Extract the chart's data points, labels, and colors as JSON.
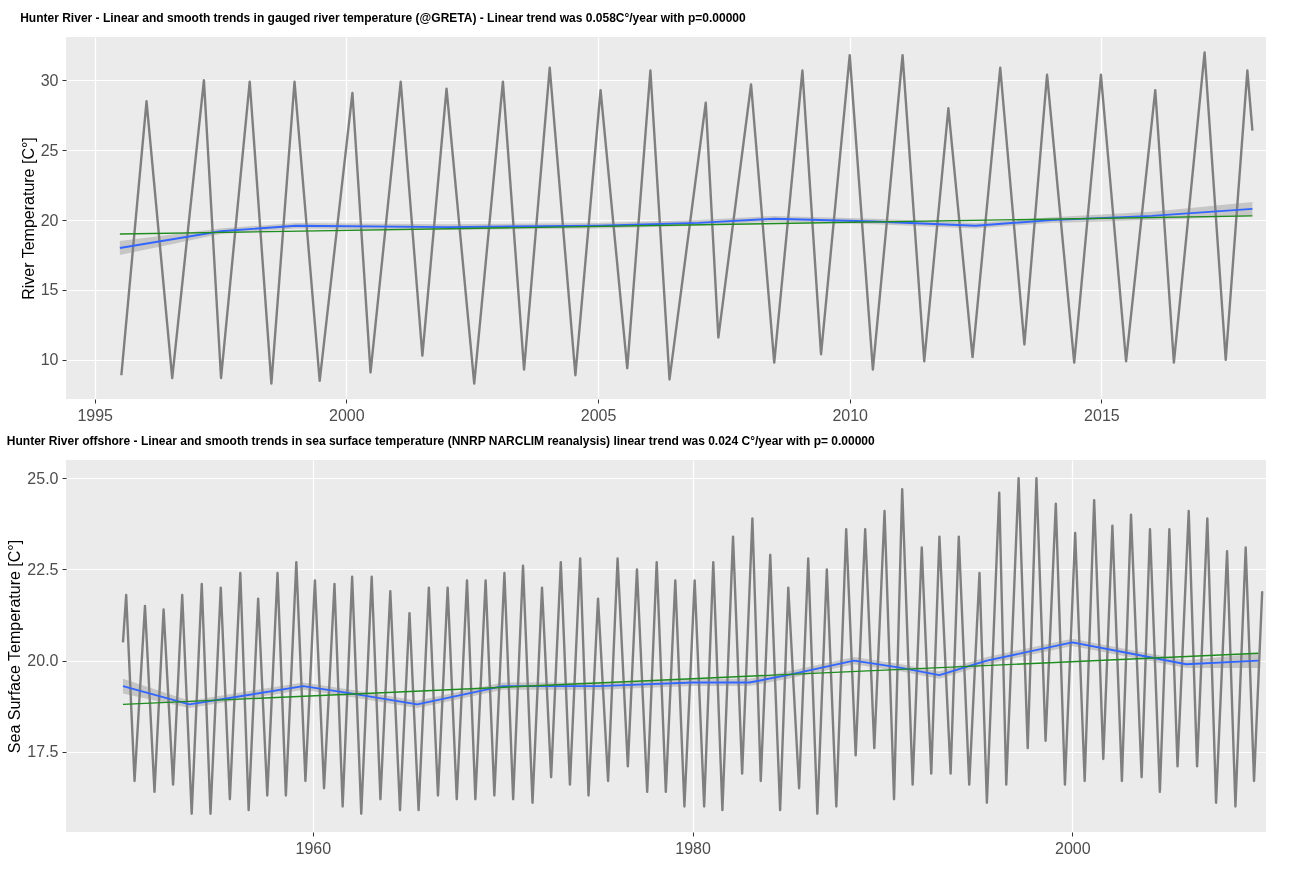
{
  "chart_data": [
    {
      "type": "line",
      "title": "Hunter River - Linear and smooth trends in gauged river temperature (@GRETA) - Linear trend was 0.058C°/year with p=0.00000",
      "ylabel": "River Temperature [C°]",
      "xlim": [
        1994.43,
        2018.27
      ],
      "xticks": [
        1995,
        2000,
        2005,
        2010,
        2015
      ],
      "ylim": [
        7.2,
        33.1
      ],
      "yticks": [
        10,
        15,
        20,
        25,
        30
      ],
      "grid": true,
      "series": [
        {
          "color": "#7f7f7f",
          "x": [
            1995.53,
            1996.03,
            1996.54,
            1997.17,
            1997.51,
            1998.08,
            1998.51,
            1998.97,
            1999.47,
            2000.12,
            2000.48,
            2001.08,
            2001.51,
            2001.99,
            2002.54,
            2003.11,
            2003.53,
            2004.04,
            2004.55,
            2005.05,
            2005.58,
            2006.04,
            2006.42,
            2007.14,
            2007.39,
            2008.04,
            2008.5,
            2009.06,
            2009.43,
            2010.0,
            2010.46,
            2011.05,
            2011.48,
            2011.96,
            2012.44,
            2012.99,
            2013.47,
            2013.92,
            2014.46,
            2014.99,
            2015.49,
            2016.07,
            2016.44,
            2017.05,
            2017.47,
            2017.9,
            2018.0
          ],
          "values": [
            8.9,
            28.5,
            8.7,
            30.0,
            8.7,
            29.9,
            8.3,
            29.9,
            8.5,
            29.1,
            9.1,
            29.9,
            10.3,
            29.4,
            8.3,
            29.9,
            9.3,
            30.9,
            8.9,
            29.3,
            9.4,
            30.7,
            8.6,
            28.4,
            11.6,
            29.7,
            9.8,
            30.7,
            10.4,
            31.8,
            9.3,
            31.8,
            9.9,
            28.0,
            10.2,
            30.9,
            11.1,
            30.4,
            9.8,
            30.4,
            9.9,
            29.3,
            9.8,
            32.0,
            10.0,
            30.7,
            26.4
          ]
        },
        {
          "color": "#3366ff",
          "x": [
            1995.5,
            1997.5,
            1999,
            2002,
            2005,
            2007,
            2008.5,
            2010.5,
            2012.5,
            2014,
            2016,
            2018
          ],
          "values": [
            18.0,
            19.2,
            19.6,
            19.5,
            19.6,
            19.8,
            20.1,
            19.9,
            19.6,
            20.0,
            20.3,
            20.8
          ],
          "lower": [
            17.5,
            19.0,
            19.4,
            19.3,
            19.4,
            19.6,
            19.9,
            19.7,
            19.4,
            19.8,
            20.0,
            20.3
          ],
          "upper": [
            18.5,
            19.4,
            19.8,
            19.7,
            19.8,
            20.0,
            20.3,
            20.1,
            19.8,
            20.2,
            20.6,
            21.3
          ]
        },
        {
          "color": "#1e8c1e",
          "x": [
            1995.5,
            2018
          ],
          "values": [
            19.0,
            20.3
          ]
        }
      ]
    },
    {
      "type": "line",
      "title": "Hunter River  offshore - Linear and smooth trends in sea surface temperature (NNRP NARCLIM reanalysis) linear trend was  0.024 C°/year with p= 0.00000",
      "ylabel": "Sea Surface Temperature [C°]",
      "xlim": [
        1947.0,
        2010.2
      ],
      "xticks": [
        1960,
        1980,
        2000
      ],
      "ylim": [
        15.3,
        25.5
      ],
      "yticks": [
        17.5,
        {
          "value": 20,
          "label": "20.0"
        },
        22.5,
        {
          "value": 25,
          "label": "25.0"
        }
      ],
      "grid": true,
      "series": [
        {
          "color": "#7f7f7f",
          "x": [
            1950.0,
            1950.17,
            1950.61,
            1951.16,
            1951.66,
            1952.14,
            1952.64,
            1953.12,
            1953.62,
            1954.15,
            1954.61,
            1955.15,
            1955.63,
            1956.18,
            1956.62,
            1957.12,
            1957.6,
            1958.14,
            1958.58,
            1959.13,
            1959.61,
            1960.11,
            1960.59,
            1961.14,
            1961.57,
            1962.07,
            1962.55,
            1963.1,
            1963.56,
            1964.08,
            1964.59,
            1965.09,
            1965.57,
            1966.11,
            1966.59,
            1967.1,
            1967.58,
            1968.12,
            1968.56,
            1969.1,
            1969.56,
            1970.09,
            1970.55,
            1971.07,
            1971.57,
            1972.07,
            1972.55,
            1973.06,
            1973.54,
            1974.08,
            1974.52,
            1975.02,
            1975.55,
            1976.05,
            1976.59,
            1977.07,
            1977.61,
            1978.11,
            1978.59,
            1979.09,
            1979.57,
            1980.11,
            1980.61,
            1981.09,
            1981.57,
            1982.13,
            1982.61,
            1983.15,
            1983.59,
            1984.09,
            1984.61,
            1985.04,
            1985.61,
            1986.09,
            1986.57,
            1987.07,
            1987.57,
            1988.09,
            1988.59,
            1989.09,
            1989.57,
            1990.11,
            1990.61,
            1991.04,
            1991.59,
            1992.07,
            1992.57,
            1993.0,
            1993.59,
            1994.02,
            1994.57,
            1995.11,
            1995.5,
            1996.15,
            1996.52,
            1997.17,
            1997.65,
            1998.11,
            1998.59,
            1999.13,
            1999.61,
            2000.15,
            2000.65,
            2001.15,
            2001.63,
            2002.11,
            2002.61,
            2003.09,
            2003.65,
            2004.09,
            2004.61,
            2005.11,
            2005.54,
            2006.13,
            2006.57,
            2007.11,
            2007.57,
            2008.15,
            2008.59,
            2009.13,
            2009.57,
            2010.0
          ],
          "values": [
            20.5,
            21.8,
            16.7,
            21.5,
            16.4,
            21.4,
            16.6,
            21.8,
            15.8,
            22.1,
            15.8,
            22.0,
            16.2,
            22.4,
            15.9,
            21.7,
            16.3,
            22.4,
            16.3,
            22.7,
            16.7,
            22.2,
            16.5,
            22.1,
            16.0,
            22.3,
            15.8,
            22.3,
            16.2,
            21.9,
            15.9,
            21.3,
            15.9,
            22.0,
            16.3,
            22.0,
            16.2,
            22.2,
            16.2,
            22.2,
            16.3,
            22.4,
            16.2,
            22.6,
            16.1,
            22.0,
            16.8,
            22.7,
            16.6,
            22.8,
            16.3,
            21.7,
            16.7,
            22.8,
            17.1,
            22.5,
            16.4,
            22.7,
            16.4,
            22.2,
            16.0,
            22.2,
            16.0,
            22.7,
            15.9,
            23.4,
            16.9,
            23.9,
            16.7,
            22.9,
            15.9,
            22.0,
            16.5,
            22.8,
            15.8,
            22.5,
            16.0,
            23.6,
            17.4,
            23.6,
            17.6,
            24.1,
            16.2,
            24.7,
            16.6,
            23.1,
            16.9,
            23.4,
            16.9,
            23.4,
            16.6,
            22.4,
            16.1,
            24.6,
            16.6,
            25.0,
            17.6,
            25.0,
            17.8,
            24.3,
            16.6,
            23.5,
            16.7,
            24.4,
            17.3,
            23.7,
            16.7,
            24.0,
            16.8,
            23.6,
            16.4,
            23.6,
            17.1,
            24.1,
            17.1,
            23.9,
            16.1,
            23.0,
            16.0,
            23.1,
            16.7,
            21.9
          ]
        },
        {
          "color": "#3366ff",
          "x": [
            1950,
            1953.5,
            1959.5,
            1962,
            1965.5,
            1970,
            1975,
            1980,
            1983,
            1985,
            1988.5,
            1991,
            1993,
            1995.5,
            2000,
            2003,
            2006,
            2009.8
          ],
          "values": [
            19.3,
            18.8,
            19.3,
            19.1,
            18.8,
            19.3,
            19.3,
            19.4,
            19.4,
            19.6,
            20.0,
            19.8,
            19.6,
            20.0,
            20.5,
            20.2,
            19.9,
            20.0
          ],
          "lower": [
            19.1,
            18.7,
            19.2,
            19.0,
            18.7,
            19.2,
            19.2,
            19.3,
            19.3,
            19.5,
            19.9,
            19.7,
            19.5,
            19.9,
            20.4,
            20.1,
            19.8,
            19.8
          ],
          "upper": [
            19.5,
            18.9,
            19.4,
            19.2,
            18.9,
            19.4,
            19.4,
            19.5,
            19.5,
            19.7,
            20.1,
            19.9,
            19.7,
            20.1,
            20.6,
            20.3,
            20.0,
            20.2
          ]
        },
        {
          "color": "#1e8c1e",
          "x": [
            1950,
            2009.8
          ],
          "values": [
            18.8,
            20.2
          ]
        }
      ]
    }
  ]
}
